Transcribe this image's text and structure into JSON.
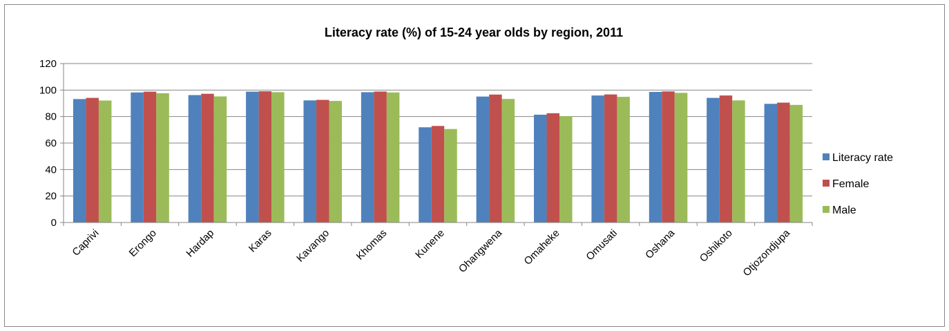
{
  "chart_data": {
    "type": "bar",
    "title": "Literacy rate (%) of 15-24 year olds by region, 2011",
    "xlabel": "",
    "ylabel": "",
    "ylim": [
      0,
      120
    ],
    "yticks": [
      0,
      20,
      40,
      60,
      80,
      100,
      120
    ],
    "grid": true,
    "legend_position": "right",
    "categories": [
      "Caprivi",
      "Erongo",
      "Hardap",
      "Karas",
      "Kavango",
      "Khomas",
      "Kunene",
      "Ohangwena",
      "Omaheke",
      "Omusati",
      "Oshana",
      "Oshikoto",
      "Otjozondjupa"
    ],
    "series": [
      {
        "name": "Literacy rate",
        "color": "#4F81BD",
        "values": [
          93.2,
          98.2,
          96.2,
          98.8,
          92.2,
          98.4,
          71.9,
          95.1,
          81.4,
          95.9,
          98.6,
          94.1,
          89.6
        ]
      },
      {
        "name": "Female",
        "color": "#C0504D",
        "values": [
          94.1,
          98.8,
          97.2,
          99.1,
          92.6,
          98.9,
          72.9,
          96.6,
          82.5,
          96.7,
          99.0,
          95.9,
          90.5
        ]
      },
      {
        "name": "Male",
        "color": "#9BBB59",
        "values": [
          92.1,
          97.6,
          95.2,
          98.4,
          91.8,
          98.2,
          70.6,
          93.3,
          80.3,
          94.9,
          97.9,
          92.2,
          88.8
        ]
      }
    ]
  }
}
